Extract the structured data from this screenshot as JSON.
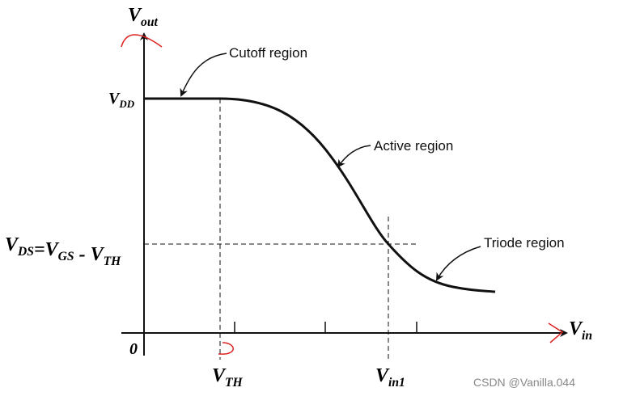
{
  "y_axis_label": {
    "base": "V",
    "sub": "out"
  },
  "x_axis_label": {
    "base": "V",
    "sub": "in"
  },
  "origin_label": "0",
  "vdd_label": {
    "base": "V",
    "sub": "DD"
  },
  "vds_label": [
    {
      "base": "V",
      "sub": "DS"
    },
    {
      "base": "=V",
      "sub": "GS"
    },
    {
      "base": " - V",
      "sub": "TH"
    }
  ],
  "vth_label": {
    "base": "V",
    "sub": "TH"
  },
  "vin1_label": {
    "base": "V",
    "sub": "in1"
  },
  "regions": [
    "Cutoff region",
    "Active region",
    "Triode region"
  ],
  "watermark": "CSDN @Vanilla.044"
}
